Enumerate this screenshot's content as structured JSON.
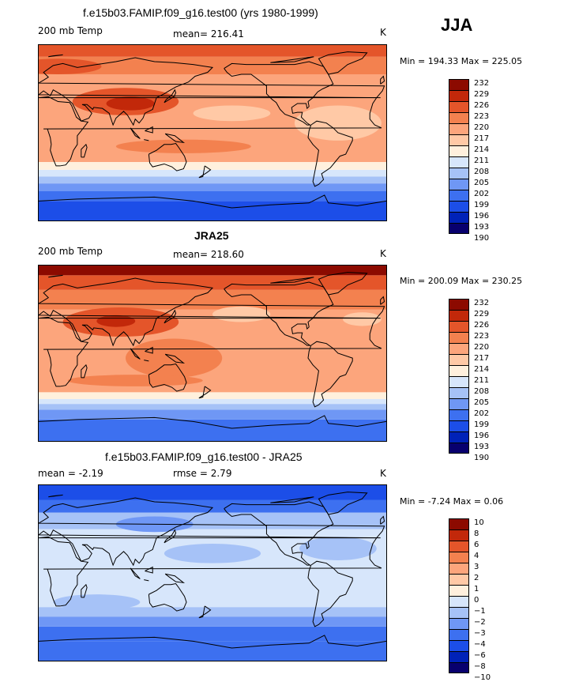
{
  "season": "JJA",
  "colors": {
    "abs_scale": [
      "#08006e",
      "#0022b8",
      "#1c4ee8",
      "#3d70f0",
      "#6f97f5",
      "#a6c2f7",
      "#d7e6fb",
      "#fff0dd",
      "#ffc9a6",
      "#fca57c",
      "#f3814f",
      "#e4552a",
      "#c2280a",
      "#8c0a00"
    ],
    "diff_scale": [
      "#08006e",
      "#0022b8",
      "#1c4ee8",
      "#3d70f0",
      "#6f97f5",
      "#a6c2f7",
      "#d7e6fb",
      "#fff0dd",
      "#ffc9a6",
      "#fca57c",
      "#f3814f",
      "#e4552a",
      "#c2280a",
      "#8c0a00"
    ]
  },
  "panels": [
    {
      "title": "f.e15b03.FAMIP.f09_g16.test00 (yrs 1980-1999)",
      "left_label": "200 mb Temp",
      "center_label": "mean= 216.41",
      "units": "K",
      "minmax": "Min = 194.33 Max = 225.05",
      "colorbar_ticks": [
        "232",
        "229",
        "226",
        "223",
        "220",
        "217",
        "214",
        "211",
        "208",
        "205",
        "202",
        "199",
        "196",
        "193",
        "190"
      ],
      "bands": [
        {
          "lat_bottom": -90,
          "lat_top": -70,
          "level": 2
        },
        {
          "lat_bottom": -70,
          "lat_top": -60,
          "level": 3
        },
        {
          "lat_bottom": -60,
          "lat_top": -52,
          "level": 4
        },
        {
          "lat_bottom": -52,
          "lat_top": -45,
          "level": 5
        },
        {
          "lat_bottom": -45,
          "lat_top": -38,
          "level": 6
        },
        {
          "lat_bottom": -38,
          "lat_top": -30,
          "level": 7
        },
        {
          "lat_bottom": -30,
          "lat_top": 60,
          "level": 9
        },
        {
          "lat_bottom": 60,
          "lat_top": 78,
          "level": 10
        },
        {
          "lat_bottom": 78,
          "lat_top": 90,
          "level": 11
        }
      ],
      "blobs": [
        {
          "lon": 90,
          "lat": 32,
          "rlon": 55,
          "rlat": 14,
          "level": 11
        },
        {
          "lon": 95,
          "lat": 30,
          "rlon": 25,
          "rlat": 7,
          "level": 12
        },
        {
          "lon": 150,
          "lat": -14,
          "rlon": 70,
          "rlat": 7,
          "level": 10
        },
        {
          "lon": 200,
          "lat": 20,
          "rlon": 40,
          "rlat": 8,
          "level": 8
        },
        {
          "lon": 310,
          "lat": 10,
          "rlon": 45,
          "rlat": 18,
          "level": 8
        },
        {
          "lon": 20,
          "lat": 68,
          "rlon": 45,
          "rlat": 8,
          "level": 11
        }
      ]
    },
    {
      "title": "JRA25",
      "left_label": "200 mb Temp",
      "center_label": "mean= 218.60",
      "units": "K",
      "minmax": "Min = 200.09 Max = 230.25",
      "colorbar_ticks": [
        "232",
        "229",
        "226",
        "223",
        "220",
        "217",
        "214",
        "211",
        "208",
        "205",
        "202",
        "199",
        "196",
        "193",
        "190"
      ],
      "bands": [
        {
          "lat_bottom": -90,
          "lat_top": -68,
          "level": 3
        },
        {
          "lat_bottom": -68,
          "lat_top": -58,
          "level": 4
        },
        {
          "lat_bottom": -58,
          "lat_top": -52,
          "level": 5
        },
        {
          "lat_bottom": -52,
          "lat_top": -47,
          "level": 6
        },
        {
          "lat_bottom": -47,
          "lat_top": -40,
          "level": 7
        },
        {
          "lat_bottom": -40,
          "lat_top": 45,
          "level": 9
        },
        {
          "lat_bottom": 45,
          "lat_top": 65,
          "level": 10
        },
        {
          "lat_bottom": 65,
          "lat_top": 80,
          "level": 11
        },
        {
          "lat_bottom": 80,
          "lat_top": 90,
          "level": 13
        }
      ],
      "blobs": [
        {
          "lon": 85,
          "lat": 32,
          "rlon": 60,
          "rlat": 15,
          "level": 11
        },
        {
          "lon": 80,
          "lat": 33,
          "rlon": 20,
          "rlat": 6,
          "level": 12
        },
        {
          "lon": 140,
          "lat": -5,
          "rlon": 50,
          "rlat": 20,
          "level": 10
        },
        {
          "lon": 210,
          "lat": 40,
          "rlon": 30,
          "rlat": 8,
          "level": 8
        },
        {
          "lon": 335,
          "lat": 35,
          "rlon": 20,
          "rlat": 7,
          "level": 8
        },
        {
          "lon": 100,
          "lat": -28,
          "rlon": 70,
          "rlat": 6,
          "level": 10
        }
      ]
    },
    {
      "title": "f.e15b03.FAMIP.f09_g16.test00 - JRA25",
      "left_label": "mean =   -2.19",
      "center_label": "rmse =    2.79",
      "units": "K",
      "minmax": "Min =  -7.24 Max =    0.06",
      "colorbar_ticks": [
        "10",
        "8",
        "6",
        "4",
        "3",
        "2",
        "1",
        "0",
        "−1",
        "−2",
        "−3",
        "−4",
        "−6",
        "−8",
        "−10"
      ],
      "bands": [
        {
          "lat_bottom": -90,
          "lat_top": -70,
          "level": 3
        },
        {
          "lat_bottom": -70,
          "lat_top": -55,
          "level": 3
        },
        {
          "lat_bottom": -55,
          "lat_top": -45,
          "level": 4
        },
        {
          "lat_bottom": -45,
          "lat_top": -35,
          "level": 5
        },
        {
          "lat_bottom": -35,
          "lat_top": 45,
          "level": 6
        },
        {
          "lat_bottom": 45,
          "lat_top": 62,
          "level": 5
        },
        {
          "lat_bottom": 62,
          "lat_top": 75,
          "level": 3
        },
        {
          "lat_bottom": 75,
          "lat_top": 90,
          "level": 2
        }
      ],
      "blobs": [
        {
          "lon": 180,
          "lat": 20,
          "rlon": 50,
          "rlat": 10,
          "level": 5
        },
        {
          "lon": 310,
          "lat": 25,
          "rlon": 40,
          "rlat": 12,
          "level": 5
        },
        {
          "lon": 60,
          "lat": -30,
          "rlon": 45,
          "rlat": 8,
          "level": 5
        },
        {
          "lon": 120,
          "lat": 50,
          "rlon": 40,
          "rlat": 8,
          "level": 4
        }
      ]
    }
  ]
}
